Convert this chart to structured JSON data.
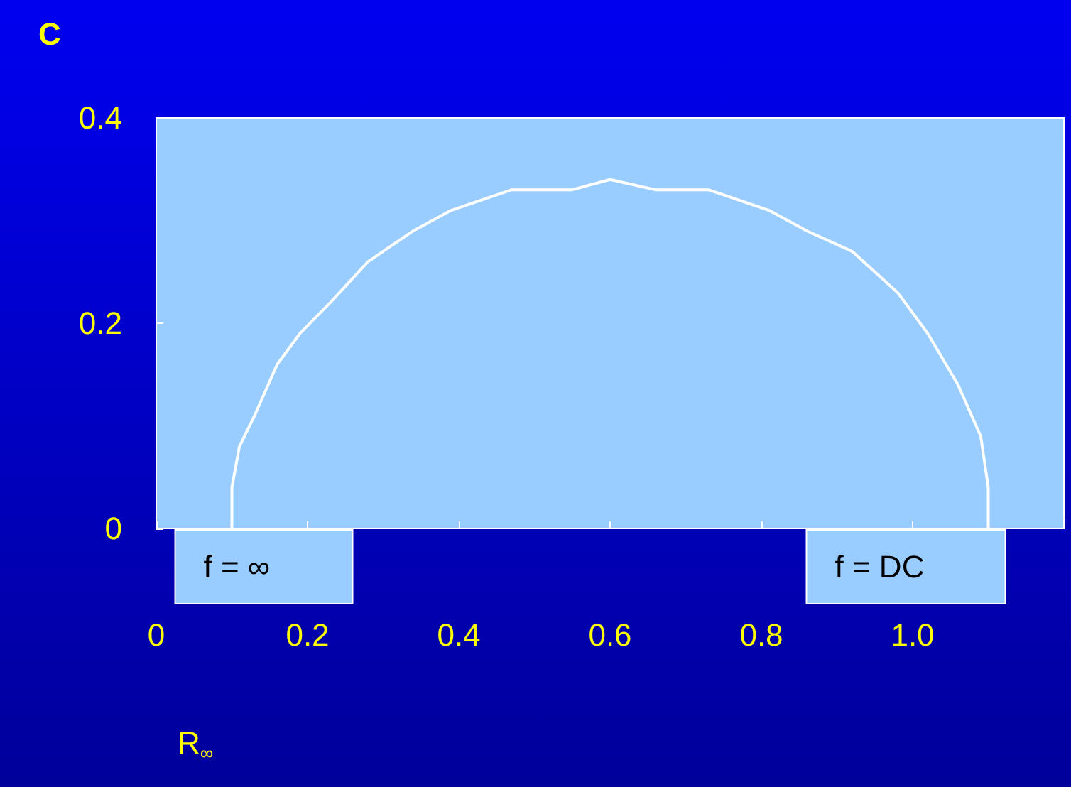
{
  "chart_data": {
    "type": "line",
    "title": "C",
    "xlabel": "R$_{∞}$",
    "x": [
      0.1,
      0.1,
      0.11,
      0.13,
      0.16,
      0.19,
      0.23,
      0.28,
      0.34,
      0.39,
      0.47,
      0.55,
      0.6,
      0.66,
      0.73,
      0.81,
      0.86,
      0.92,
      0.98,
      1.02,
      1.06,
      1.09,
      1.1,
      1.1
    ],
    "series": [
      {
        "color": "#ffffff",
        "values": [
          0,
          0.04,
          0.08,
          0.11,
          0.16,
          0.19,
          0.22,
          0.26,
          0.29,
          0.31,
          0.33,
          0.33,
          0.34,
          0.33,
          0.33,
          0.31,
          0.29,
          0.27,
          0.23,
          0.19,
          0.14,
          0.09,
          0.04,
          0
        ]
      }
    ],
    "xlim": [
      0,
      1.2
    ],
    "xticks": [
      0,
      0.2,
      0.4,
      0.6,
      0.8,
      {
        "value": 1,
        "label": "1.0"
      },
      {
        "value": 1.2,
        "label": null
      }
    ],
    "ylim": [
      0,
      0.4
    ],
    "yticks": [
      0,
      0.2,
      0.4
    ],
    "annotations": [
      {
        "text": "f = ∞",
        "x": 0.1,
        "y": 0
      },
      {
        "text": "f = DC",
        "x": 1.1,
        "y": 0
      }
    ],
    "grid": false,
    "marker": "none",
    "line_style": "solid"
  }
}
